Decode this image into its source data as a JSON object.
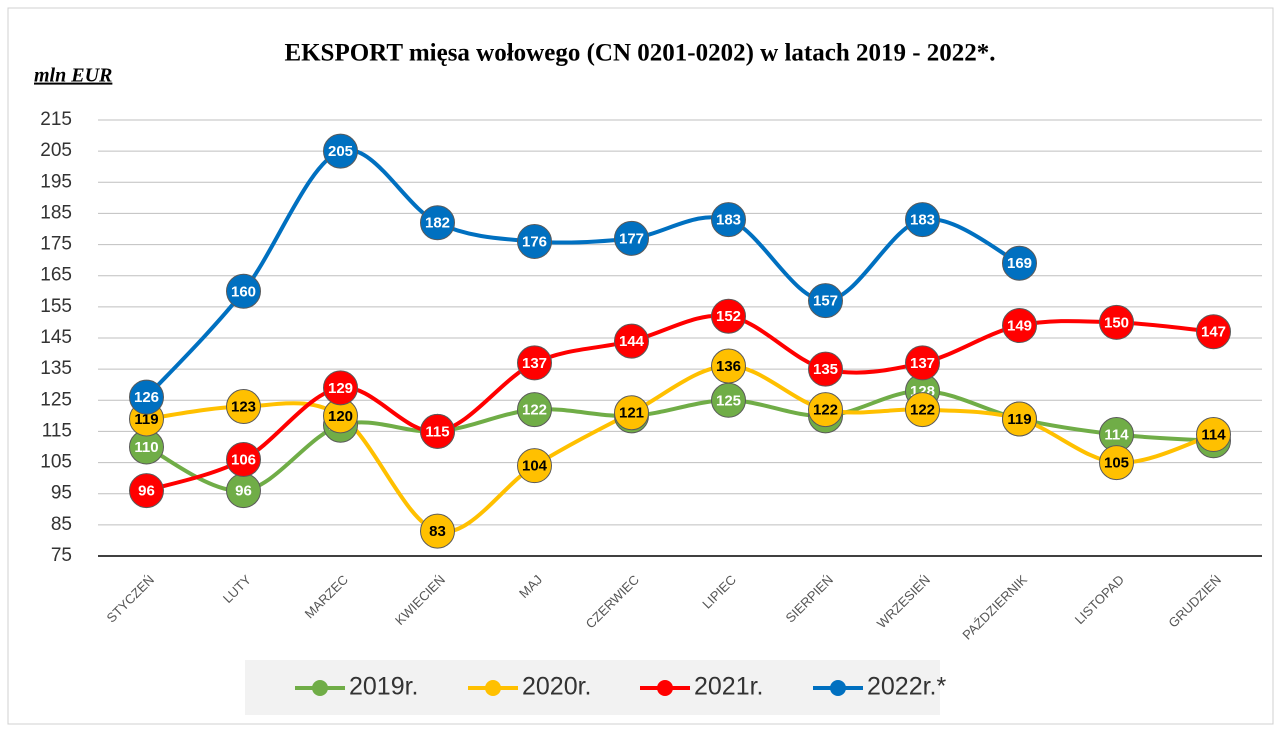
{
  "chart_data": {
    "type": "line",
    "title": "EKSPORT mięsa wołowego (CN 0201-0202) w latach 2019 - 2022*.",
    "y_label": "mln EUR",
    "categories": [
      "STYCZEŃ",
      "LUTY",
      "MARZEC",
      "KWIECIEŃ",
      "MAJ",
      "CZERWIEC",
      "LIPIEC",
      "SIERPIEŃ",
      "WRZESIEŃ",
      "PAŹDZIERNIK",
      "LISTOPAD",
      "GRUDZIEŃ"
    ],
    "series": [
      {
        "name": "2019r.",
        "color": "#70ad47",
        "label_color": "#ffffff",
        "values": [
          110,
          96,
          117,
          115,
          122,
          120,
          125,
          120,
          128,
          119,
          114,
          112
        ]
      },
      {
        "name": "2020r.",
        "color": "#ffc000",
        "label_color": "#000000",
        "values": [
          119,
          123,
          120,
          83,
          104,
          121,
          136,
          122,
          122,
          119,
          105,
          114
        ]
      },
      {
        "name": "2021r.",
        "color": "#ff0000",
        "label_color": "#ffffff",
        "values": [
          96,
          106,
          129,
          115,
          137,
          144,
          152,
          135,
          137,
          149,
          150,
          147
        ]
      },
      {
        "name": "2022r.*",
        "color": "#0070c0",
        "label_color": "#ffffff",
        "values": [
          126,
          160,
          205,
          182,
          176,
          177,
          183,
          157,
          183,
          169,
          null,
          null
        ]
      }
    ],
    "ylim": [
      75,
      215
    ],
    "yticks": [
      75,
      85,
      95,
      105,
      115,
      125,
      135,
      145,
      155,
      165,
      175,
      185,
      195,
      205,
      215
    ],
    "grid": true,
    "legend": "bottom"
  }
}
